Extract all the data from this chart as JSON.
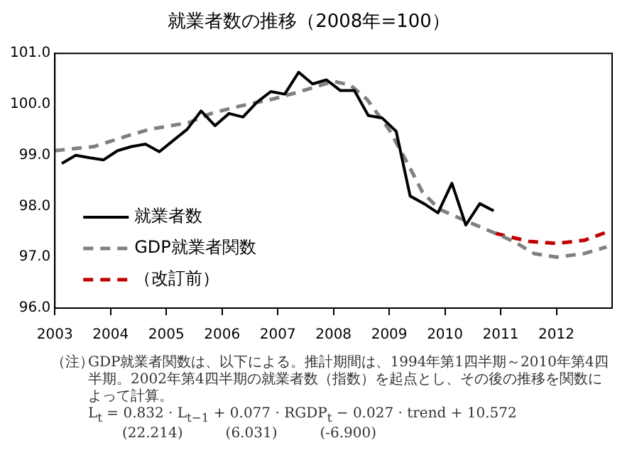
{
  "chart_data": {
    "type": "line",
    "title": "就業者数の推移（2008年=100）",
    "xlim": [
      2003,
      2013
    ],
    "xticks": [
      2003,
      2004,
      2005,
      2006,
      2007,
      2008,
      2009,
      2010,
      2011,
      2012
    ],
    "ylim": [
      96,
      101
    ],
    "yticks": [
      {
        "value": 96,
        "label": "96.0"
      },
      {
        "value": 97,
        "label": "97.0"
      },
      {
        "value": 98,
        "label": "98.0"
      },
      {
        "value": 99,
        "label": "99.0"
      },
      {
        "value": 100,
        "label": "100.0"
      },
      {
        "value": 101,
        "label": "101.0"
      }
    ],
    "grid": false,
    "legend": "bottom left",
    "marker": "none",
    "series": [
      {
        "name": "就業者数",
        "color": "#000000",
        "line_style": "solid",
        "x": [
          2003.125,
          2003.375,
          2003.625,
          2003.875,
          2004.125,
          2004.375,
          2004.625,
          2004.875,
          2005.125,
          2005.375,
          2005.625,
          2005.875,
          2006.125,
          2006.375,
          2006.625,
          2006.875,
          2007.125,
          2007.375,
          2007.625,
          2007.875,
          2008.125,
          2008.375,
          2008.625,
          2008.875,
          2009.125,
          2009.375,
          2009.625,
          2009.875,
          2010.125,
          2010.375,
          2010.625,
          2010.875
        ],
        "values": [
          98.84,
          99.0,
          98.95,
          98.91,
          99.09,
          99.17,
          99.22,
          99.07,
          99.29,
          99.51,
          99.87,
          99.58,
          99.82,
          99.75,
          100.04,
          100.25,
          100.2,
          100.63,
          100.4,
          100.48,
          100.27,
          100.27,
          99.78,
          99.73,
          99.47,
          98.2,
          98.05,
          97.87,
          98.45,
          97.63,
          98.05,
          97.91
        ]
      },
      {
        "name": "GDP就業者関数",
        "color": "#808080",
        "line_style": "dashed",
        "x": [
          2003.0,
          2003.7,
          2004.3,
          2004.7,
          2005.4,
          2005.8,
          2006.3,
          2006.9,
          2007.4,
          2008.0,
          2008.3,
          2008.6,
          2009.0,
          2009.35,
          2009.6,
          2009.9,
          2010.4,
          2010.9,
          2011.25,
          2011.6,
          2012.0,
          2012.5,
          2012.9
        ],
        "values": [
          99.09,
          99.17,
          99.38,
          99.51,
          99.64,
          99.82,
          99.96,
          100.1,
          100.25,
          100.45,
          100.38,
          100.1,
          99.5,
          98.8,
          98.27,
          97.94,
          97.7,
          97.47,
          97.3,
          97.07,
          97.0,
          97.07,
          97.2
        ]
      },
      {
        "name": "（改訂前）",
        "color": "#c00000",
        "line_style": "dashed",
        "x": [
          2010.9,
          2011.5,
          2012.0,
          2012.5,
          2012.9
        ],
        "values": [
          97.47,
          97.31,
          97.27,
          97.33,
          97.49
        ]
      }
    ],
    "annotations": [
      "（注）",
      "GDP就業者関数は、以下による。推計期間は、1994年第1四半期～2010年第4四半期。2002年第4四半期の就業者数（指数）を起点とし、その後の推移を関数によって計算。",
      "L$_{t}$ = 0.832 · L$_{t−1}$ + 0.077 · RGDP$_{t}$ − 0.027 · trend + 10.572",
      "(22.214)　　　(6.031)　　　(-6.900)"
    ]
  }
}
